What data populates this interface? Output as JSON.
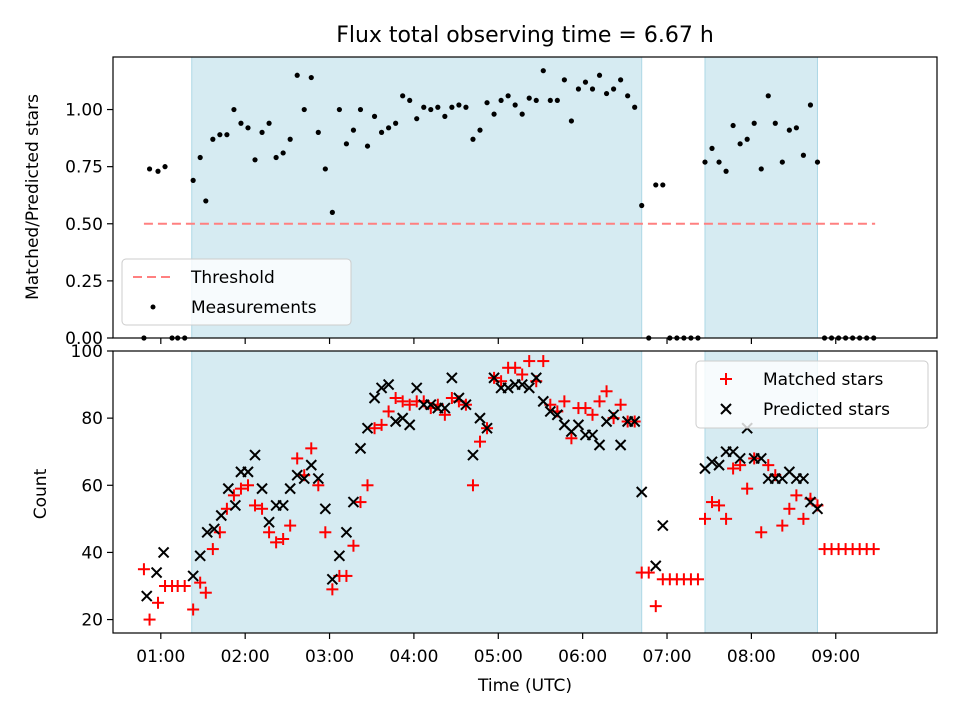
{
  "title": "Flux total observing time = 6.67 h",
  "chart_data": [
    {
      "type": "scatter",
      "ylabel": "Matched/Predicted stars",
      "xlabel": "",
      "xlim": [
        "00:26",
        "10:12"
      ],
      "ylim": [
        0,
        1.23
      ],
      "y_ticks": [
        0.0,
        0.25,
        0.5,
        0.75,
        1.0
      ],
      "y_tick_labels": [
        "0.00",
        "0.25",
        "0.50",
        "0.75",
        "1.00"
      ],
      "threshold": {
        "name": "Threshold",
        "value": 0.5,
        "x_start": "00:48",
        "x_end": "09:28",
        "color": "#ff8080"
      },
      "shaded_intervals": [
        [
          "01:22",
          "06:42"
        ],
        [
          "07:27",
          "08:47"
        ]
      ],
      "legend": {
        "position": "lower-left"
      },
      "series": [
        {
          "name": "Measurements",
          "color": "#000000",
          "x": [
            "00:48",
            "00:52",
            "00:58",
            "01:03",
            "01:08",
            "01:12",
            "01:17",
            "01:23",
            "01:28",
            "01:32",
            "01:37",
            "01:42",
            "01:47",
            "01:52",
            "01:57",
            "02:02",
            "02:07",
            "02:12",
            "02:17",
            "02:22",
            "02:27",
            "02:32",
            "02:37",
            "02:42",
            "02:47",
            "02:52",
            "02:57",
            "03:02",
            "03:07",
            "03:12",
            "03:17",
            "03:22",
            "03:27",
            "03:32",
            "03:37",
            "03:42",
            "03:47",
            "03:52",
            "03:57",
            "04:02",
            "04:07",
            "04:12",
            "04:17",
            "04:22",
            "04:27",
            "04:32",
            "04:37",
            "04:42",
            "04:47",
            "04:52",
            "04:57",
            "05:02",
            "05:07",
            "05:12",
            "05:17",
            "05:22",
            "05:27",
            "05:32",
            "05:37",
            "05:42",
            "05:47",
            "05:52",
            "05:57",
            "06:02",
            "06:07",
            "06:12",
            "06:17",
            "06:22",
            "06:27",
            "06:32",
            "06:37",
            "06:42",
            "06:47",
            "06:52",
            "06:57",
            "07:02",
            "07:07",
            "07:12",
            "07:17",
            "07:22",
            "07:27",
            "07:32",
            "07:37",
            "07:42",
            "07:47",
            "07:52",
            "07:57",
            "08:02",
            "08:07",
            "08:12",
            "08:17",
            "08:22",
            "08:27",
            "08:32",
            "08:37",
            "08:42",
            "08:47",
            "08:52",
            "08:57",
            "09:02",
            "09:07",
            "09:12",
            "09:17",
            "09:22",
            "09:27"
          ],
          "y": [
            0.0,
            0.74,
            0.73,
            0.75,
            0.0,
            0.0,
            0.0,
            0.69,
            0.79,
            0.6,
            0.87,
            0.89,
            0.89,
            1.0,
            0.94,
            0.92,
            0.78,
            0.9,
            0.94,
            0.79,
            0.81,
            0.87,
            1.15,
            1.0,
            1.14,
            0.9,
            0.74,
            0.55,
            1.0,
            0.85,
            0.91,
            1.0,
            0.84,
            0.97,
            0.9,
            0.92,
            0.94,
            1.06,
            1.04,
            0.96,
            1.01,
            1.0,
            1.01,
            0.97,
            1.01,
            1.02,
            1.01,
            0.87,
            0.91,
            1.03,
            0.98,
            1.04,
            1.06,
            1.02,
            0.98,
            1.05,
            1.04,
            1.17,
            1.04,
            1.04,
            1.13,
            0.95,
            1.09,
            1.12,
            1.09,
            1.15,
            1.07,
            1.09,
            1.13,
            1.06,
            1.01,
            0.58,
            0.0,
            0.67,
            0.67,
            0.0,
            0.0,
            0.0,
            0.0,
            0.0,
            0.77,
            0.83,
            0.77,
            0.73,
            0.93,
            0.85,
            0.87,
            0.94,
            0.74,
            1.06,
            0.94,
            0.77,
            0.91,
            0.92,
            0.8,
            1.02,
            0.77,
            0.0,
            0.0,
            0.0,
            0.0,
            0.0,
            0.0,
            0.0,
            0.0
          ]
        }
      ]
    },
    {
      "type": "scatter",
      "ylabel": "Count",
      "xlabel": "Time (UTC)",
      "xlim": [
        "00:26",
        "10:12"
      ],
      "ylim": [
        16,
        100
      ],
      "y_ticks": [
        20,
        40,
        60,
        80,
        100
      ],
      "y_tick_labels": [
        "20",
        "40",
        "60",
        "80",
        "100"
      ],
      "x_ticks": [
        "01:00",
        "02:00",
        "03:00",
        "04:00",
        "05:00",
        "06:00",
        "07:00",
        "08:00",
        "09:00"
      ],
      "shaded_intervals": [
        [
          "01:22",
          "06:42"
        ],
        [
          "07:27",
          "08:47"
        ]
      ],
      "legend": {
        "position": "top-right"
      },
      "series": [
        {
          "name": "Matched stars",
          "color": "#ff0000",
          "x": [
            "00:48",
            "00:52",
            "00:58",
            "01:03",
            "01:08",
            "01:12",
            "01:17",
            "01:23",
            "01:28",
            "01:32",
            "01:37",
            "01:42",
            "01:47",
            "01:52",
            "01:57",
            "02:02",
            "02:07",
            "02:12",
            "02:17",
            "02:22",
            "02:27",
            "02:32",
            "02:37",
            "02:42",
            "02:47",
            "02:52",
            "02:57",
            "03:02",
            "03:07",
            "03:12",
            "03:17",
            "03:22",
            "03:27",
            "03:32",
            "03:37",
            "03:42",
            "03:47",
            "03:52",
            "03:57",
            "04:02",
            "04:07",
            "04:12",
            "04:17",
            "04:22",
            "04:27",
            "04:32",
            "04:37",
            "04:42",
            "04:47",
            "04:52",
            "04:57",
            "05:02",
            "05:07",
            "05:12",
            "05:17",
            "05:22",
            "05:27",
            "05:32",
            "05:37",
            "05:42",
            "05:47",
            "05:52",
            "05:57",
            "06:02",
            "06:07",
            "06:12",
            "06:17",
            "06:22",
            "06:27",
            "06:32",
            "06:37",
            "06:42",
            "06:47",
            "06:52",
            "06:57",
            "07:02",
            "07:07",
            "07:12",
            "07:17",
            "07:22",
            "07:27",
            "07:32",
            "07:37",
            "07:42",
            "07:47",
            "07:52",
            "07:57",
            "08:02",
            "08:07",
            "08:12",
            "08:17",
            "08:22",
            "08:27",
            "08:32",
            "08:37",
            "08:42",
            "08:47",
            "08:52",
            "08:57",
            "09:02",
            "09:07",
            "09:12",
            "09:17",
            "09:22",
            "09:27"
          ],
          "y": [
            35,
            20,
            25,
            30,
            30,
            30,
            30,
            23,
            31,
            28,
            41,
            46,
            53,
            57,
            59,
            60,
            54,
            53,
            46,
            43,
            44,
            48,
            68,
            63,
            71,
            60,
            46,
            29,
            33,
            33,
            42,
            55,
            60,
            77,
            78,
            82,
            86,
            85,
            84,
            85,
            85,
            83,
            84,
            81,
            86,
            85,
            84,
            60,
            73,
            77,
            92,
            91,
            95,
            95,
            93,
            97,
            91,
            97,
            84,
            82,
            85,
            74,
            83,
            83,
            81,
            85,
            88,
            80,
            84,
            79,
            79,
            34,
            34,
            24,
            32,
            32,
            32,
            32,
            32,
            32,
            50,
            55,
            54,
            50,
            65,
            66,
            59,
            68,
            46,
            66,
            63,
            48,
            53,
            57,
            50,
            56,
            54,
            41,
            41,
            41,
            41,
            41,
            41,
            41,
            41
          ]
        },
        {
          "name": "Predicted stars",
          "color": "#000000",
          "x": [
            "00:50",
            "00:57",
            "01:02",
            "01:23",
            "01:28",
            "01:33",
            "01:38",
            "01:43",
            "01:48",
            "01:53",
            "01:57",
            "02:02",
            "02:07",
            "02:12",
            "02:17",
            "02:22",
            "02:27",
            "02:32",
            "02:37",
            "02:42",
            "02:47",
            "02:52",
            "02:57",
            "03:02",
            "03:07",
            "03:12",
            "03:17",
            "03:22",
            "03:27",
            "03:32",
            "03:37",
            "03:42",
            "03:47",
            "03:52",
            "03:57",
            "04:02",
            "04:07",
            "04:12",
            "04:17",
            "04:22",
            "04:27",
            "04:32",
            "04:37",
            "04:42",
            "04:47",
            "04:52",
            "04:57",
            "05:02",
            "05:07",
            "05:12",
            "05:17",
            "05:22",
            "05:27",
            "05:32",
            "05:37",
            "05:42",
            "05:47",
            "05:52",
            "05:57",
            "06:02",
            "06:07",
            "06:12",
            "06:17",
            "06:22",
            "06:27",
            "06:32",
            "06:37",
            "06:42",
            "06:52",
            "06:57",
            "07:32",
            "07:27",
            "07:37",
            "07:42",
            "07:47",
            "07:52",
            "07:57",
            "08:02",
            "08:07",
            "08:12",
            "08:17",
            "08:22",
            "08:27",
            "08:32",
            "08:37",
            "08:42",
            "08:47"
          ],
          "y": [
            27,
            34,
            40,
            33,
            39,
            46,
            47,
            51,
            59,
            54,
            64,
            64,
            69,
            59,
            49,
            54,
            54,
            59,
            63,
            62,
            66,
            62,
            53,
            32,
            39,
            46,
            55,
            71,
            77,
            86,
            89,
            90,
            79,
            80,
            78,
            89,
            84,
            84,
            83,
            83,
            92,
            86,
            84,
            69,
            80,
            77,
            92,
            89,
            89,
            90,
            90,
            89,
            92,
            85,
            82,
            81,
            78,
            76,
            78,
            75,
            75,
            72,
            79,
            81,
            72,
            79,
            79,
            58,
            36,
            48,
            67,
            65,
            66,
            70,
            70,
            68,
            77,
            68,
            68,
            62,
            62,
            62,
            64,
            62,
            62,
            55,
            53
          ]
        }
      ]
    }
  ]
}
